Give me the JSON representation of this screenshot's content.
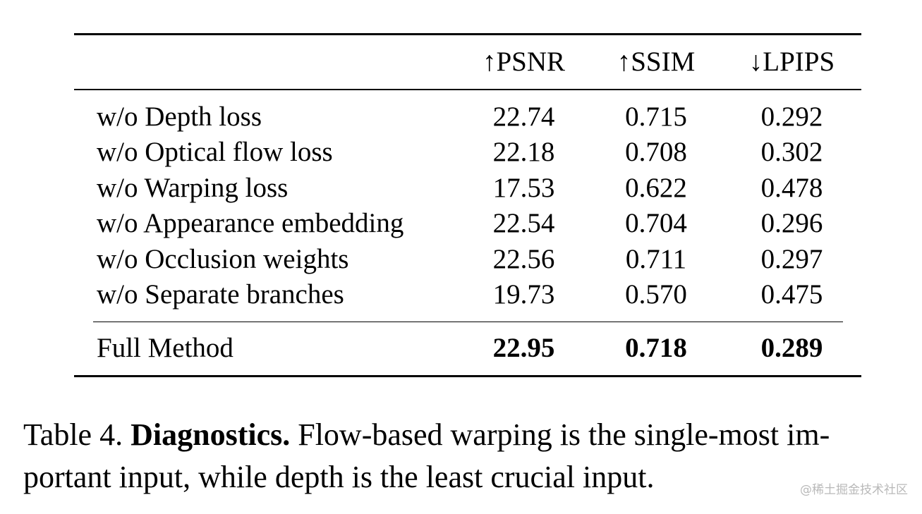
{
  "table": {
    "headers": [
      "",
      "↑PSNR",
      "↑SSIM",
      "↓LPIPS"
    ],
    "rows": [
      {
        "label": "w/o Depth loss",
        "psnr": "22.74",
        "ssim": "0.715",
        "lpips": "0.292"
      },
      {
        "label": "w/o Optical flow loss",
        "psnr": "22.18",
        "ssim": "0.708",
        "lpips": "0.302"
      },
      {
        "label": "w/o Warping loss",
        "psnr": "17.53",
        "ssim": "0.622",
        "lpips": "0.478"
      },
      {
        "label": "w/o Appearance embedding",
        "psnr": "22.54",
        "ssim": "0.704",
        "lpips": "0.296"
      },
      {
        "label": "w/o Occlusion weights",
        "psnr": "22.56",
        "ssim": "0.711",
        "lpips": "0.297"
      },
      {
        "label": "w/o Separate branches",
        "psnr": "19.73",
        "ssim": "0.570",
        "lpips": "0.475"
      }
    ],
    "final": {
      "label": "Full Method",
      "psnr": "22.95",
      "ssim": "0.718",
      "lpips": "0.289"
    }
  },
  "caption": {
    "prefix": "Table 4. ",
    "title": "Diagnostics.",
    "line1_rest": " Flow-based warping is the single-most im-",
    "line2": "portant input, while depth is the least crucial input."
  },
  "watermark": "@稀土掘金技术社区"
}
